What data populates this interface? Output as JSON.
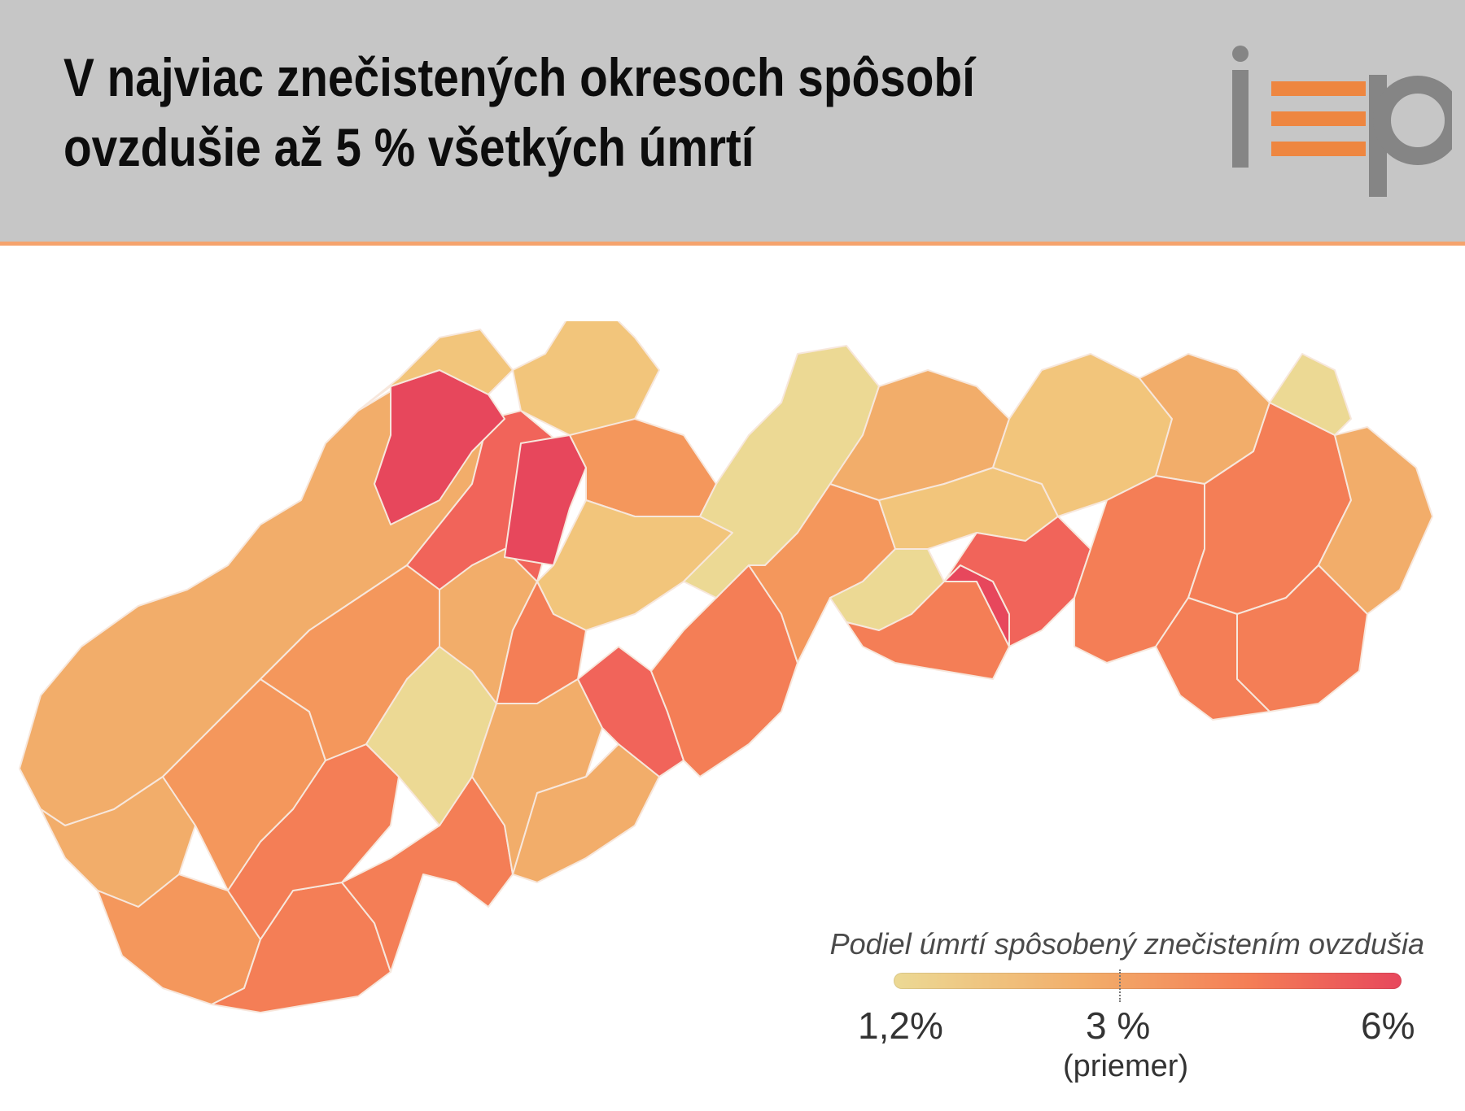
{
  "header": {
    "title_line1": "V najviac znečistených okresoch spôsobí",
    "title_line2": "ovzdušie až 5 % všetkých úmrtí",
    "background": "#c6c6c6",
    "accent_line": "#f5a36d"
  },
  "logo": {
    "text": "iep",
    "colors": {
      "grey": "#858585",
      "orange": "#ee8640"
    }
  },
  "map": {
    "subject": "Slovakia districts choropleth",
    "border_color": "#f7e7dc",
    "district_colors": [
      "#ecd994",
      "#f2c57b",
      "#f2ad6a",
      "#f4975c",
      "#f47e56",
      "#f1645a",
      "#e7475c"
    ]
  },
  "legend": {
    "title": "Podiel úmrtí spôsobený znečistením ovzdušia",
    "min_label": "1,2%",
    "avg_label": "3 %",
    "avg_note": "(priemer)",
    "max_label": "6%",
    "min_value": 1.2,
    "avg_value": 3,
    "max_value": 6,
    "gradient": [
      "#ecd994",
      "#f2ad6a",
      "#f47e56",
      "#e7475c"
    ]
  }
}
